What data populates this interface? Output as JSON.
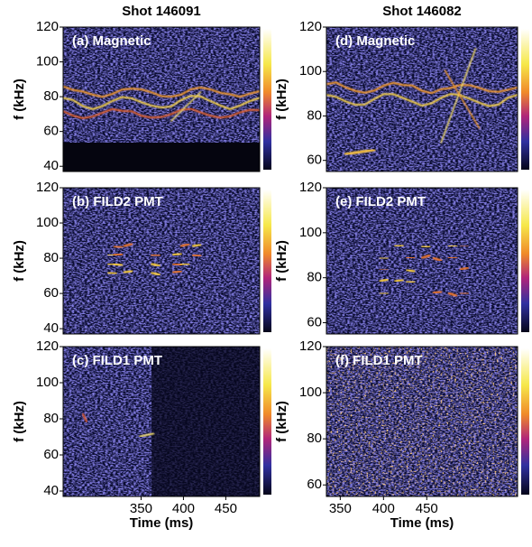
{
  "columns": [
    "Shot 146091",
    "Shot 146082"
  ],
  "chart_data": [
    {
      "type": "heatmap",
      "title": "(a) Magnetic",
      "ylabel": "f (kHz)",
      "ylim": [
        37,
        120
      ],
      "yticks": [
        40,
        60,
        80,
        100,
        120
      ]
    },
    {
      "type": "heatmap",
      "title": "(b) FILD2 PMT",
      "ylabel": "f (kHz)",
      "ylim": [
        37,
        120
      ],
      "yticks": [
        40,
        60,
        80,
        100,
        120
      ]
    },
    {
      "type": "heatmap",
      "title": "(c) FILD1 PMT",
      "ylabel": "f (kHz)",
      "xlabel": "Time (ms)",
      "ylim": [
        37,
        120
      ],
      "yticks": [
        40,
        60,
        80,
        100,
        120
      ],
      "xlim": [
        258,
        490
      ],
      "xticks": [
        350,
        400,
        450
      ]
    },
    {
      "type": "heatmap",
      "title": "(d) Magnetic",
      "ylabel": "f (kHz)",
      "ylim": [
        55,
        120
      ],
      "yticks": [
        60,
        80,
        100,
        120
      ]
    },
    {
      "type": "heatmap",
      "title": "(e) FILD2 PMT",
      "ylabel": "f (kHz)",
      "ylim": [
        55,
        120
      ],
      "yticks": [
        60,
        80,
        100,
        120
      ]
    },
    {
      "type": "heatmap",
      "title": "(f) FILD1 PMT",
      "ylabel": "f (kHz)",
      "xlabel": "Time (ms)",
      "ylim": [
        55,
        120
      ],
      "yticks": [
        60,
        80,
        100,
        120
      ],
      "xlim": [
        334,
        555
      ],
      "xticks": [
        350,
        400,
        450
      ]
    }
  ]
}
